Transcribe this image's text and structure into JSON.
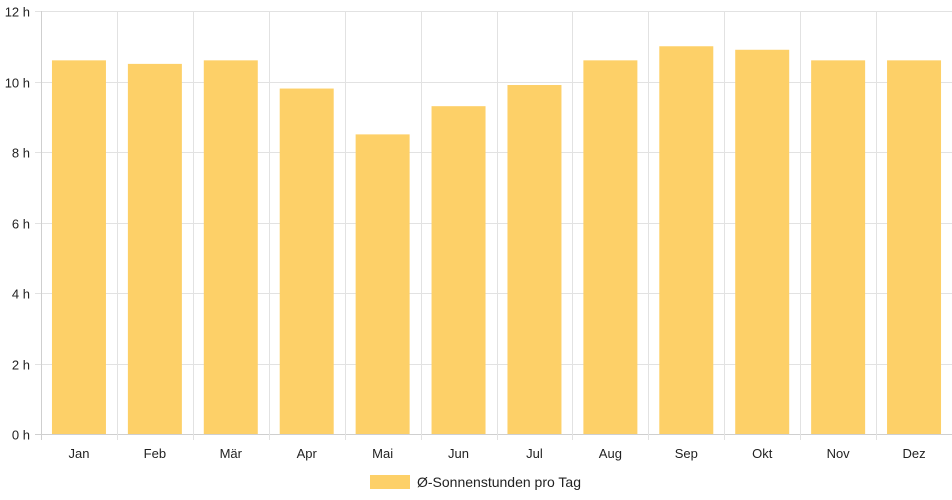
{
  "chart_data": {
    "type": "bar",
    "categories": [
      "Jan",
      "Feb",
      "Mär",
      "Apr",
      "Mai",
      "Jun",
      "Jul",
      "Aug",
      "Sep",
      "Okt",
      "Nov",
      "Dez"
    ],
    "series": [
      {
        "name": "Ø-Sonnenstunden pro Tag",
        "values": [
          10.6,
          10.5,
          10.6,
          9.8,
          8.5,
          9.3,
          9.9,
          10.6,
          11.0,
          10.9,
          10.6,
          10.6
        ],
        "color": "#fdd068"
      }
    ],
    "y_ticks": [
      "0 h",
      "2 h",
      "4 h",
      "6 h",
      "8 h",
      "10 h",
      "12 h"
    ],
    "ylim": [
      0,
      12
    ],
    "grid": true,
    "legend_position": "bottom-center"
  }
}
